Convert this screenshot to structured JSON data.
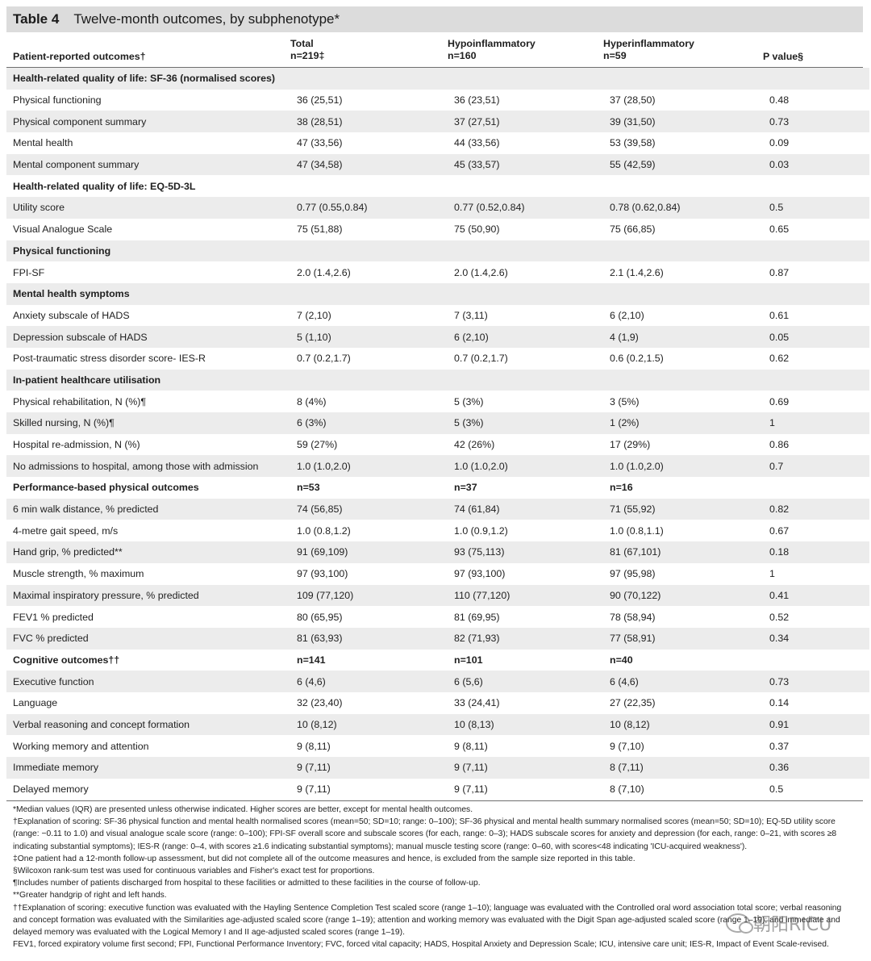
{
  "table": {
    "label": "Table 4",
    "caption": "Twelve-month outcomes, by subphenotype*"
  },
  "columns": {
    "outcome": "Patient-reported outcomes†",
    "total": {
      "name": "Total",
      "n": "n=219‡"
    },
    "hypo": {
      "name": "Hypoinflammatory",
      "n": "n=160"
    },
    "hyper": {
      "name": "Hyperinflammatory",
      "n": "n=59"
    },
    "p": "P value§"
  },
  "rows": [
    {
      "type": "section",
      "label": "Health-related quality of life: SF-36 (normalised scores)",
      "total": "",
      "hypo": "",
      "hyper": "",
      "p": ""
    },
    {
      "type": "data",
      "label": "Physical functioning",
      "total": "36 (25,51)",
      "hypo": "36 (23,51)",
      "hyper": "37 (28,50)",
      "p": "0.48"
    },
    {
      "type": "data",
      "label": "Physical component summary",
      "total": "38 (28,51)",
      "hypo": "37 (27,51)",
      "hyper": "39 (31,50)",
      "p": "0.73"
    },
    {
      "type": "data",
      "label": "Mental health",
      "total": "47 (33,56)",
      "hypo": "44 (33,56)",
      "hyper": "53 (39,58)",
      "p": "0.09"
    },
    {
      "type": "data",
      "label": "Mental component summary",
      "total": "47 (34,58)",
      "hypo": "45 (33,57)",
      "hyper": "55 (42,59)",
      "p": "0.03"
    },
    {
      "type": "section",
      "label": "Health-related quality of life: EQ-5D-3L",
      "total": "",
      "hypo": "",
      "hyper": "",
      "p": ""
    },
    {
      "type": "data",
      "label": "Utility score",
      "total": "0.77 (0.55,0.84)",
      "hypo": "0.77 (0.52,0.84)",
      "hyper": "0.78 (0.62,0.84)",
      "p": "0.5"
    },
    {
      "type": "data",
      "label": "Visual Analogue Scale",
      "total": "75 (51,88)",
      "hypo": "75 (50,90)",
      "hyper": "75 (66,85)",
      "p": "0.65"
    },
    {
      "type": "section",
      "label": "Physical functioning",
      "total": "",
      "hypo": "",
      "hyper": "",
      "p": ""
    },
    {
      "type": "data",
      "label": "FPI-SF",
      "total": "2.0 (1.4,2.6)",
      "hypo": "2.0 (1.4,2.6)",
      "hyper": "2.1 (1.4,2.6)",
      "p": "0.87"
    },
    {
      "type": "section",
      "label": "Mental health symptoms",
      "total": "",
      "hypo": "",
      "hyper": "",
      "p": ""
    },
    {
      "type": "data",
      "label": "Anxiety subscale of HADS",
      "total": "7 (2,10)",
      "hypo": "7 (3,11)",
      "hyper": "6 (2,10)",
      "p": "0.61"
    },
    {
      "type": "data",
      "label": "Depression subscale of HADS",
      "total": "5 (1,10)",
      "hypo": "6 (2,10)",
      "hyper": "4 (1,9)",
      "p": "0.05"
    },
    {
      "type": "data",
      "label": "Post-traumatic stress disorder score- IES-R",
      "total": "0.7 (0.2,1.7)",
      "hypo": "0.7 (0.2,1.7)",
      "hyper": "0.6 (0.2,1.5)",
      "p": "0.62"
    },
    {
      "type": "section",
      "label": "In-patient healthcare utilisation",
      "total": "",
      "hypo": "",
      "hyper": "",
      "p": ""
    },
    {
      "type": "data",
      "label": "Physical rehabilitation, N (%)¶",
      "total": "8 (4%)",
      "hypo": "5 (3%)",
      "hyper": "3 (5%)",
      "p": "0.69"
    },
    {
      "type": "data",
      "label": "Skilled nursing, N (%)¶",
      "total": "6 (3%)",
      "hypo": "5 (3%)",
      "hyper": "1 (2%)",
      "p": "1"
    },
    {
      "type": "data",
      "label": "Hospital re-admission, N (%)",
      "total": "59 (27%)",
      "hypo": "42 (26%)",
      "hyper": "17 (29%)",
      "p": "0.86"
    },
    {
      "type": "data",
      "label": "No admissions to hospital, among those with admission",
      "total": "1.0 (1.0,2.0)",
      "hypo": "1.0 (1.0,2.0)",
      "hyper": "1.0 (1.0,2.0)",
      "p": "0.7"
    },
    {
      "type": "section",
      "label": "Performance-based physical outcomes",
      "total": "n=53",
      "hypo": "n=37",
      "hyper": "n=16",
      "p": ""
    },
    {
      "type": "data",
      "label": "6 min walk distance, % predicted",
      "total": "74 (56,85)",
      "hypo": "74 (61,84)",
      "hyper": "71 (55,92)",
      "p": "0.82"
    },
    {
      "type": "data",
      "label": "4-metre gait speed, m/s",
      "total": "1.0 (0.8,1.2)",
      "hypo": "1.0 (0.9,1.2)",
      "hyper": "1.0 (0.8,1.1)",
      "p": "0.67"
    },
    {
      "type": "data",
      "label": "Hand grip, % predicted**",
      "total": "91 (69,109)",
      "hypo": "93 (75,113)",
      "hyper": "81 (67,101)",
      "p": "0.18"
    },
    {
      "type": "data",
      "label": "Muscle strength, % maximum",
      "total": "97 (93,100)",
      "hypo": "97 (93,100)",
      "hyper": "97 (95,98)",
      "p": "1"
    },
    {
      "type": "data",
      "label": "Maximal inspiratory pressure, % predicted",
      "total": "109 (77,120)",
      "hypo": "110 (77,120)",
      "hyper": "90 (70,122)",
      "p": "0.41"
    },
    {
      "type": "data",
      "label": "FEV1 % predicted",
      "total": "80 (65,95)",
      "hypo": "81 (69,95)",
      "hyper": "78 (58,94)",
      "p": "0.52"
    },
    {
      "type": "data",
      "label": "FVC % predicted",
      "total": "81 (63,93)",
      "hypo": "82 (71,93)",
      "hyper": "77 (58,91)",
      "p": "0.34"
    },
    {
      "type": "section",
      "label": "Cognitive outcomes††",
      "total": "n=141",
      "hypo": "n=101",
      "hyper": "n=40",
      "p": ""
    },
    {
      "type": "data",
      "label": "Executive function",
      "total": "6 (4,6)",
      "hypo": "6 (5,6)",
      "hyper": "6 (4,6)",
      "p": "0.73"
    },
    {
      "type": "data",
      "label": "Language",
      "total": "32 (23,40)",
      "hypo": "33 (24,41)",
      "hyper": "27 (22,35)",
      "p": "0.14"
    },
    {
      "type": "data",
      "label": "Verbal reasoning and concept formation",
      "total": "10 (8,12)",
      "hypo": "10 (8,13)",
      "hyper": "10 (8,12)",
      "p": "0.91"
    },
    {
      "type": "data",
      "label": "Working memory and attention",
      "total": "9 (8,11)",
      "hypo": "9 (8,11)",
      "hyper": "9 (7,10)",
      "p": "0.37"
    },
    {
      "type": "data",
      "label": "Immediate memory",
      "total": "9 (7,11)",
      "hypo": "9 (7,11)",
      "hyper": "8 (7,11)",
      "p": "0.36"
    },
    {
      "type": "data",
      "label": "Delayed memory",
      "total": "9 (7,11)",
      "hypo": "9 (7,11)",
      "hyper": "8 (7,10)",
      "p": "0.5"
    }
  ],
  "footnotes": [
    "*Median values (IQR) are presented unless otherwise indicated. Higher scores are better, except for mental health outcomes.",
    "†Explanation of scoring: SF-36 physical function and mental health normalised scores (mean=50; SD=10; range: 0–100); SF-36 physical and mental health summary normalised scores (mean=50; SD=10); EQ-5D utility score (range: −0.11 to 1.0) and visual analogue scale score (range: 0–100); FPI-SF overall score and subscale scores (for each, range: 0–3); HADS subscale scores for anxiety and depression (for each, range: 0–21, with scores ≥8 indicating substantial symptoms); IES-R (range: 0–4, with scores ≥1.6 indicating substantial symptoms); manual muscle testing score (range: 0–60, with scores<48 indicating 'ICU-acquired weakness').",
    "‡One patient had a 12-month follow-up assessment, but did not complete all of the outcome measures and hence, is excluded from the sample size reported in this table.",
    "§Wilcoxon rank-sum test was used for continuous variables and Fisher's exact test for proportions.",
    "¶Includes number of patients discharged from hospital to these facilities or admitted to these facilities in the course of follow-up.",
    "**Greater handgrip of right and left hands.",
    "††Explanation of scoring: executive function was evaluated with the Hayling Sentence Completion Test scaled score (range 1–10); language was evaluated with the Controlled oral word association total score; verbal reasoning and concept formation was evaluated with the Similarities age-adjusted scaled score (range 1–19); attention and working memory was evaluated with the Digit Span age-adjusted scaled score (range 1–19); and immediate and delayed memory was evaluated with the Logical Memory I and II age-adjusted scaled scores (range 1–19).",
    "FEV1, forced expiratory volume first second; FPI, Functional Performance Inventory; FVC, forced vital capacity; HADS, Hospital Anxiety and Depression Scale; ICU, intensive care unit; IES-R, Impact of Event Scale-revised."
  ],
  "watermark": {
    "text": "朝阳RICU",
    "icon": "wechat-icon"
  }
}
